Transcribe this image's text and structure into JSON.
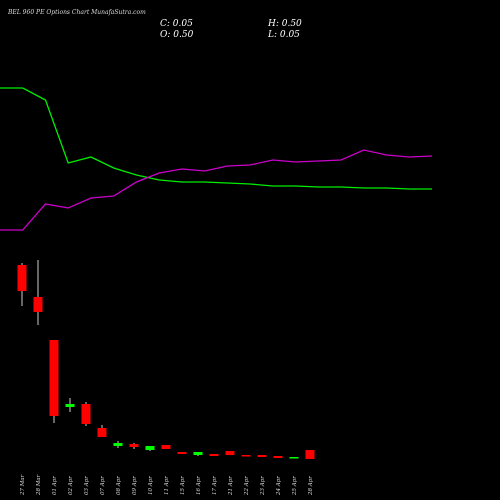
{
  "chart_data": [
    {
      "type": "candlestick",
      "title": "BEL 960 PE Options Chart MunafaSutra.com",
      "annotations": [
        "C: 0.05",
        "H: 0.50",
        "O: 0.50",
        "L: 0.05"
      ],
      "categories": [
        "27 Mar",
        "28 Mar",
        "01 Apr",
        "02 Apr",
        "03 Apr",
        "07 Apr",
        "08 Apr",
        "09 Apr",
        "10 Apr",
        "11 Apr",
        "15 Apr",
        "16 Apr",
        "17 Apr",
        "21 Apr",
        "22 Apr",
        "23 Apr",
        "24 Apr",
        "25 Apr",
        "28 Apr"
      ],
      "open": [
        9.75,
        8.15,
        6.0,
        2.65,
        2.8,
        1.6,
        0.7,
        0.8,
        0.5,
        0.75,
        0.4,
        0.25,
        0.3,
        0.45,
        0.25,
        0.25,
        0.2,
        0.1,
        0.5
      ],
      "high": [
        9.85,
        10.0,
        6.0,
        3.1,
        2.9,
        1.75,
        0.95,
        0.85,
        0.7,
        0.75,
        0.4,
        0.4,
        0.3,
        0.45,
        0.25,
        0.25,
        0.2,
        0.15,
        0.5
      ],
      "low": [
        7.7,
        6.75,
        1.85,
        2.4,
        1.7,
        1.15,
        0.6,
        0.55,
        0.45,
        0.55,
        0.3,
        0.2,
        0.2,
        0.25,
        0.2,
        0.15,
        0.1,
        0.1,
        0.05
      ],
      "close": [
        8.45,
        7.4,
        2.2,
        2.8,
        1.8,
        1.15,
        0.85,
        0.65,
        0.7,
        0.55,
        0.3,
        0.4,
        0.2,
        0.25,
        0.2,
        0.15,
        0.1,
        0.15,
        0.05
      ],
      "up_color": "#00ff00",
      "down_color": "#ff0000",
      "ylim": [
        0,
        10.25
      ]
    },
    {
      "type": "line",
      "ylim": [
        0,
        160
      ],
      "series": [
        {
          "color": "#00ee00",
          "values": [
            152,
            152,
            140,
            77,
            83,
            72,
            65,
            60,
            58,
            58,
            57,
            56,
            54,
            54,
            53,
            53,
            52,
            52,
            51,
            51
          ]
        },
        {
          "color": "#cc00cc",
          "values": [
            10,
            10,
            36,
            32,
            42,
            44,
            58,
            67,
            71,
            69,
            74,
            75,
            80,
            78,
            79,
            80,
            90,
            85,
            83,
            84
          ]
        }
      ]
    }
  ]
}
